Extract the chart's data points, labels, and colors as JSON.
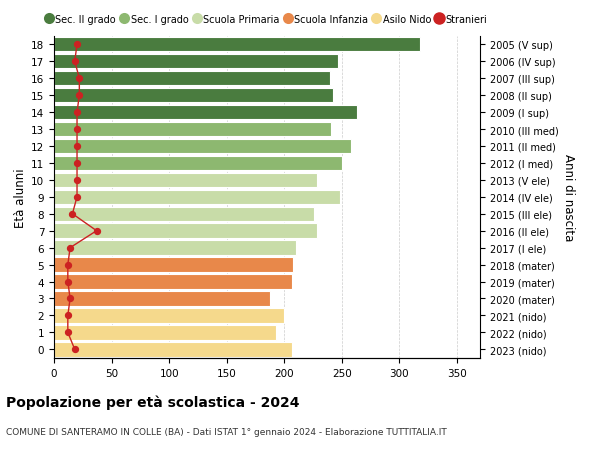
{
  "ages": [
    0,
    1,
    2,
    3,
    4,
    5,
    6,
    7,
    8,
    9,
    10,
    11,
    12,
    13,
    14,
    15,
    16,
    17,
    18
  ],
  "right_labels": [
    "2023 (nido)",
    "2022 (nido)",
    "2021 (nido)",
    "2020 (mater)",
    "2019 (mater)",
    "2018 (mater)",
    "2017 (I ele)",
    "2016 (II ele)",
    "2015 (III ele)",
    "2014 (IV ele)",
    "2013 (V ele)",
    "2012 (I med)",
    "2011 (II med)",
    "2010 (III med)",
    "2009 (I sup)",
    "2008 (II sup)",
    "2007 (III sup)",
    "2006 (IV sup)",
    "2005 (V sup)"
  ],
  "bar_values": [
    207,
    193,
    200,
    188,
    207,
    208,
    210,
    228,
    226,
    248,
    228,
    250,
    258,
    241,
    263,
    242,
    240,
    247,
    318
  ],
  "bar_colors": [
    "#f5d98c",
    "#f5d98c",
    "#f5d98c",
    "#e8884a",
    "#e8884a",
    "#e8884a",
    "#c8dca8",
    "#c8dca8",
    "#c8dca8",
    "#c8dca8",
    "#c8dca8",
    "#8db870",
    "#8db870",
    "#8db870",
    "#4a7c3f",
    "#4a7c3f",
    "#4a7c3f",
    "#4a7c3f",
    "#4a7c3f"
  ],
  "stranieri_values": [
    18,
    12,
    12,
    14,
    12,
    12,
    14,
    37,
    16,
    20,
    20,
    20,
    20,
    20,
    20,
    22,
    22,
    18,
    20
  ],
  "legend_labels": [
    "Sec. II grado",
    "Sec. I grado",
    "Scuola Primaria",
    "Scuola Infanzia",
    "Asilo Nido",
    "Stranieri"
  ],
  "legend_colors": [
    "#4a7c3f",
    "#8db870",
    "#c8dca8",
    "#e8884a",
    "#f5d98c",
    "#cc2222"
  ],
  "title": "Popolazione per età scolastica - 2024",
  "subtitle": "COMUNE DI SANTERAMO IN COLLE (BA) - Dati ISTAT 1° gennaio 2024 - Elaborazione TUTTITALIA.IT",
  "ylabel_left": "Età alunni",
  "ylabel_right": "Anni di nascita",
  "xlim": [
    0,
    370
  ],
  "xticks": [
    0,
    50,
    100,
    150,
    200,
    250,
    300,
    350
  ],
  "background_color": "#ffffff",
  "grid_color": "#cccccc"
}
